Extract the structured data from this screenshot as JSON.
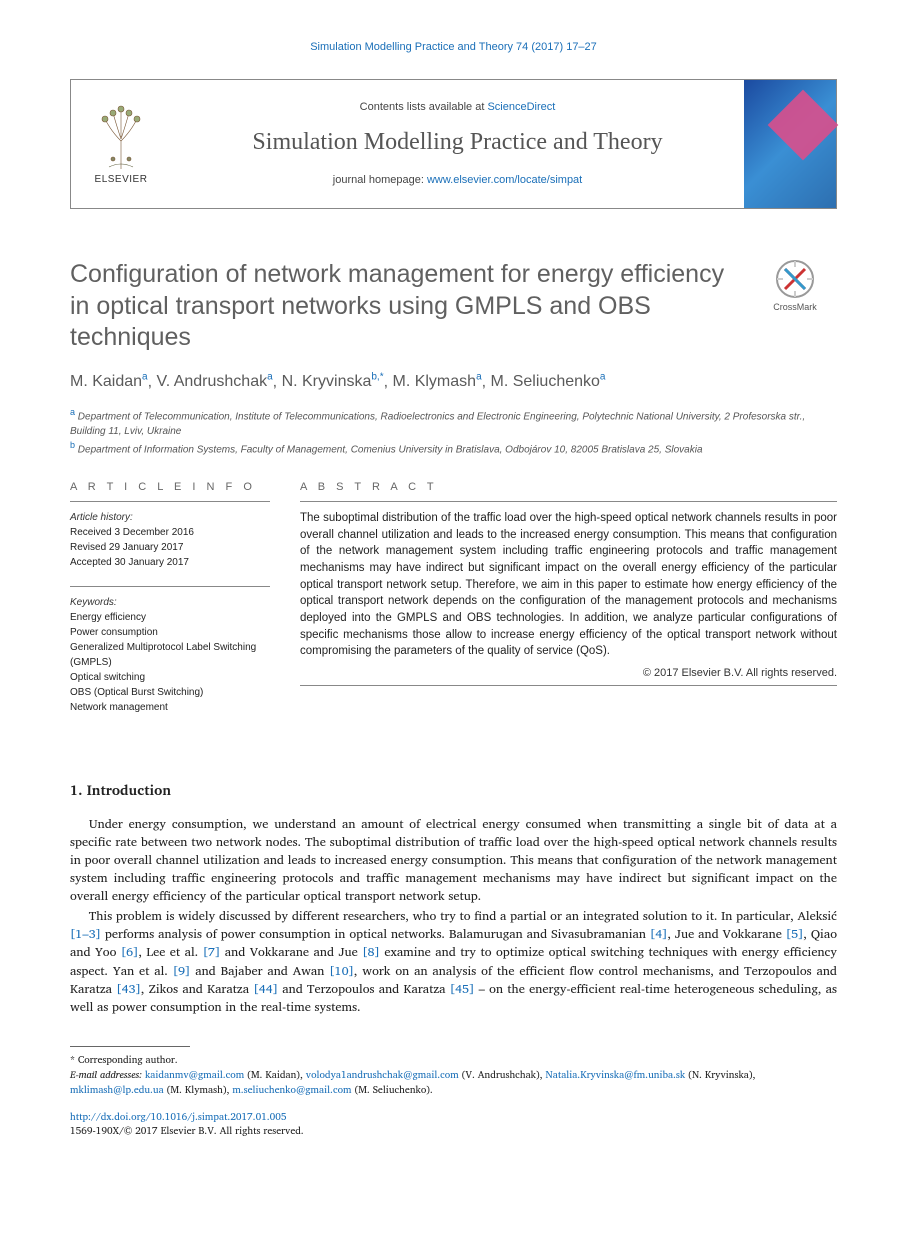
{
  "running_head": "Simulation Modelling Practice and Theory 74 (2017) 17–27",
  "masthead": {
    "publisher": "ELSEVIER",
    "contents_prefix": "Contents lists available at ",
    "contents_link": "ScienceDirect",
    "journal_title": "Simulation Modelling Practice and Theory",
    "homepage_prefix": "journal homepage: ",
    "homepage_url": "www.elsevier.com/locate/simpat"
  },
  "crossmark_label": "CrossMark",
  "article": {
    "title": "Configuration of network management for energy efficiency in optical transport networks using GMPLS and OBS techniques",
    "authors_html": "M. Kaidan|a|, V. Andrushchak|a|, N. Kryvinska|b,*|, M. Klymash|a|, M. Seliuchenko|a|",
    "authors": [
      {
        "name": "M. Kaidan",
        "sup": "a"
      },
      {
        "name": "V. Andrushchak",
        "sup": "a"
      },
      {
        "name": "N. Kryvinska",
        "sup": "b,*"
      },
      {
        "name": "M. Klymash",
        "sup": "a"
      },
      {
        "name": "M. Seliuchenko",
        "sup": "a"
      }
    ],
    "affiliations": [
      {
        "sup": "a",
        "text": "Department of Telecommunication, Institute of Telecommunications, Radioelectronics and Electronic Engineering, Polytechnic National University, 2 Profesorska str., Building 11, Lviv, Ukraine"
      },
      {
        "sup": "b",
        "text": "Department of Information Systems, Faculty of Management, Comenius University in Bratislava, Odbojárov 10, 82005 Bratislava 25, Slovakia"
      }
    ]
  },
  "info": {
    "label": "A R T I C L E   I N F O",
    "history_label": "Article history:",
    "history": [
      "Received 3 December 2016",
      "Revised 29 January 2017",
      "Accepted 30 January 2017"
    ],
    "keywords_label": "Keywords:",
    "keywords": [
      "Energy efficiency",
      "Power consumption",
      "Generalized Multiprotocol Label Switching (GMPLS)",
      "Optical switching",
      "OBS (Optical Burst Switching)",
      "Network management"
    ]
  },
  "abstract": {
    "label": "A B S T R A C T",
    "text": "The suboptimal distribution of the traffic load over the high-speed optical network channels results in poor overall channel utilization and leads to the increased energy consumption. This means that configuration of the network management system including traffic engineering protocols and traffic management mechanisms may have indirect but significant impact on the overall energy efficiency of the particular optical transport network setup. Therefore, we aim in this paper to estimate how energy efficiency of the optical transport network depends on the configuration of the management protocols and mechanisms deployed into the GMPLS and OBS technologies. In addition, we analyze particular configurations of specific mechanisms those allow to increase energy efficiency of the optical transport network without compromising the parameters of the quality of service (QoS).",
    "copyright": "© 2017 Elsevier B.V. All rights reserved."
  },
  "introduction": {
    "heading": "1. Introduction",
    "p1": "Under energy consumption, we understand an amount of electrical energy consumed when transmitting a single bit of data at a specific rate between two network nodes. The suboptimal distribution of traffic load over the high-speed optical network channels results in poor overall channel utilization and leads to increased energy consumption. This means that configuration of the network management system including traffic engineering protocols and traffic management mechanisms may have indirect but significant impact on the overall energy efficiency of the particular optical transport network setup.",
    "p2_parts": [
      "This problem is widely discussed by different researchers, who try to find a partial or an integrated solution to it. In particular, Aleksić ",
      "[1–3]",
      " performs analysis of power consumption in optical networks. Balamurugan and Sivasubramanian ",
      "[4]",
      ", Jue and Vokkarane ",
      "[5]",
      ", Qiao and Yoo ",
      "[6]",
      ", Lee et al. ",
      "[7]",
      " and Vokkarane and Jue ",
      "[8]",
      " examine and try to optimize optical switching techniques with energy efficiency aspect. Yan et al. ",
      "[9]",
      " and Bajaber and Awan ",
      "[10]",
      ", work on an analysis of the efficient flow control mechanisms, and Terzopoulos and Karatza ",
      "[43]",
      ", Zikos and Karatza ",
      "[44]",
      " and Terzopoulos and Karatza ",
      "[45]",
      " – on the energy-efficient real-time heterogeneous scheduling, as well as power consumption in the real-time systems."
    ]
  },
  "footnotes": {
    "corr": "* Corresponding author.",
    "emails_label": "E-mail addresses: ",
    "emails": [
      {
        "addr": "kaidanmv@gmail.com",
        "who": "(M. Kaidan)"
      },
      {
        "addr": "volodya1andrushchak@gmail.com",
        "who": "(V. Andrushchak)"
      },
      {
        "addr": "Natalia.Kryvinska@fm.uniba.sk",
        "who": "(N. Kryvinska)"
      },
      {
        "addr": "mklimash@lp.edu.ua",
        "who": "(M. Klymash)"
      },
      {
        "addr": "m.seliuchenko@gmail.com",
        "who": "(M. Seliuchenko)."
      }
    ]
  },
  "doi": {
    "url": "http://dx.doi.org/10.1016/j.simpat.2017.01.005",
    "issn_line": "1569-190X/© 2017 Elsevier B.V. All rights reserved."
  },
  "colors": {
    "link": "#1a6fb8",
    "title_gray": "#606060",
    "rule": "#888888"
  }
}
